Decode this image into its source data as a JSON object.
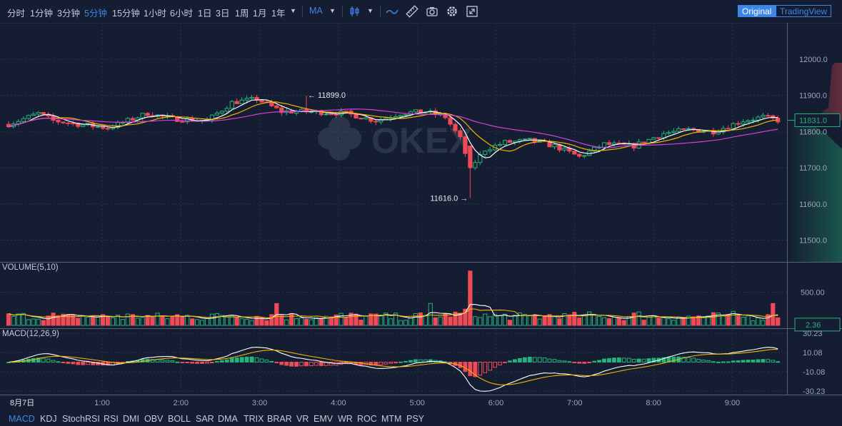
{
  "toolbar": {
    "timeframes": [
      "分时",
      "1分钟",
      "3分钟",
      "5分钟",
      "15分钟",
      "1小时",
      "6小时",
      "1日",
      "3日",
      "1周",
      "1月",
      "1年"
    ],
    "active_timeframe": "5分钟",
    "indicator_select": "MA",
    "modes": [
      "Original",
      "TradingView"
    ],
    "active_mode": "Original"
  },
  "watermark": "OKEX",
  "panes": {
    "volume_title": "VOLUME(5,10)",
    "macd_title": "MACD(12,26,9)"
  },
  "indicator_tabs": [
    "MACD",
    "KDJ",
    "StochRSI",
    "RSI",
    "DMI",
    "OBV",
    "BOLL",
    "SAR",
    "DMA",
    "TRIX",
    "BRAR",
    "VR",
    "EMV",
    "WR",
    "ROC",
    "MTM",
    "PSY"
  ],
  "active_indicator": "MACD",
  "chart_data": {
    "type": "candlestick",
    "date_label": "8月7日",
    "x_ticks": [
      "1:00",
      "2:00",
      "3:00",
      "4:00",
      "5:00",
      "6:00",
      "7:00",
      "8:00",
      "9:00"
    ],
    "price_axis": {
      "ticks": [
        12000.0,
        11900.0,
        11800.0,
        11700.0,
        11600.0,
        11500.0
      ],
      "labels": [
        "12000.0",
        "11900.0",
        "11800.0",
        "11700.0",
        "11600.0",
        "11500.0"
      ],
      "range": [
        11440,
        12100
      ]
    },
    "last_price": "11831.0",
    "high_marker": "11899.0",
    "low_marker": "11616.0",
    "volume_axis": {
      "tick": "500.00",
      "last": "2.36",
      "range": [
        0,
        850
      ]
    },
    "macd_axis": {
      "ticks": [
        "30.23",
        "10.08",
        "-10.08",
        "-30.23"
      ],
      "range": [
        -34,
        34
      ]
    },
    "colors": {
      "up": "#22b47a",
      "down": "#ee4a57",
      "ma5": "#ffffff",
      "ma10": "#f4b400",
      "ma30": "#d43fd8",
      "grid": "#2a3449"
    },
    "anchors": [
      {
        "t": 0,
        "p": 11820
      },
      {
        "t": 6,
        "p": 11850
      },
      {
        "t": 9,
        "p": 11830
      },
      {
        "t": 14,
        "p": 11820
      },
      {
        "t": 20,
        "p": 11810
      },
      {
        "t": 24,
        "p": 11830
      },
      {
        "t": 28,
        "p": 11850
      },
      {
        "t": 33,
        "p": 11835
      },
      {
        "t": 40,
        "p": 11830
      },
      {
        "t": 45,
        "p": 11880
      },
      {
        "t": 50,
        "p": 11890
      },
      {
        "t": 55,
        "p": 11855
      },
      {
        "t": 60,
        "p": 11855
      },
      {
        "t": 68,
        "p": 11850
      },
      {
        "t": 74,
        "p": 11830
      },
      {
        "t": 79,
        "p": 11850
      },
      {
        "t": 84,
        "p": 11855
      },
      {
        "t": 88,
        "p": 11840
      },
      {
        "t": 91,
        "p": 11780
      },
      {
        "t": 93,
        "p": 11700
      },
      {
        "t": 96,
        "p": 11750
      },
      {
        "t": 100,
        "p": 11770
      },
      {
        "t": 105,
        "p": 11775
      },
      {
        "t": 110,
        "p": 11760
      },
      {
        "t": 115,
        "p": 11730
      },
      {
        "t": 120,
        "p": 11765
      },
      {
        "t": 126,
        "p": 11760
      },
      {
        "t": 132,
        "p": 11795
      },
      {
        "t": 137,
        "p": 11805
      },
      {
        "t": 142,
        "p": 11800
      },
      {
        "t": 148,
        "p": 11830
      },
      {
        "t": 152,
        "p": 11840
      },
      {
        "t": 155,
        "p": 11831
      }
    ]
  }
}
